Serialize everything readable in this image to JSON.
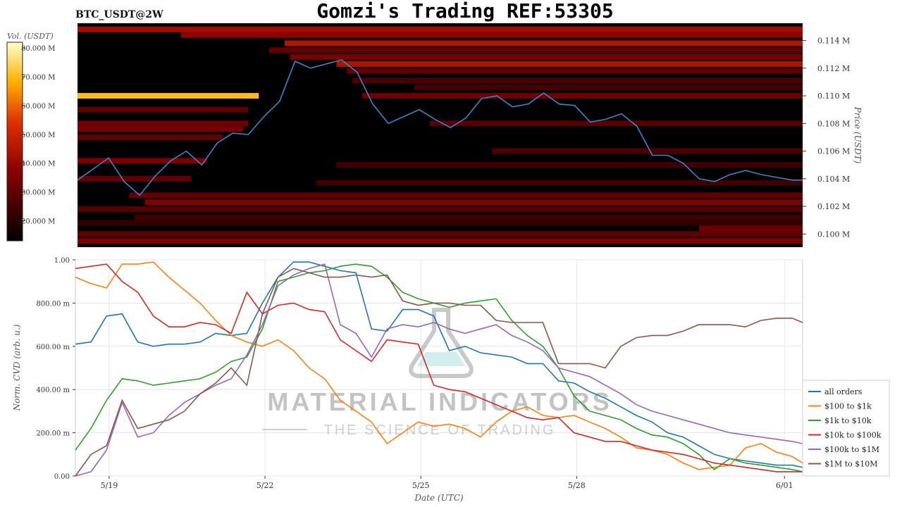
{
  "header": {
    "pair": "BTC_USDT@2W",
    "title": "Gomzi's Trading REF:53305"
  },
  "watermark": {
    "line1": "MATERIAL INDICATORS",
    "line2": "THE SCIENCE OF TRADING"
  },
  "colors": {
    "all orders": "#1f77b4",
    "$100 to $1k": "#ff7f0e",
    "$1k to $10k": "#2ca02c",
    "$10k to $100k": "#d62728",
    "$100k to $1M": "#9467bd",
    "$1M to $10M": "#8c564b",
    "price_line": "#3a86c8",
    "heatmap_bg": "#000000"
  },
  "chart_data": [
    {
      "type": "heatmap",
      "colorbar_label": "Vol. (USDT)",
      "colorbar_ticks": [
        "80.000 M",
        "70.000 M",
        "60.000 M",
        "50.000 M",
        "40.000 M",
        "30.000 M",
        "20.000 M"
      ],
      "colorbar_values": [
        80,
        70,
        60,
        50,
        40,
        30,
        20
      ],
      "colorbar_range": [
        13,
        82
      ],
      "ylabel": "Price (USDT)",
      "y_ticks": [
        "0.114 M",
        "0.112 M",
        "0.110 M",
        "0.108 M",
        "0.106 M",
        "0.104 M",
        "0.102 M",
        "0.100 M"
      ],
      "y_tick_values": [
        114000,
        112000,
        110000,
        108000,
        106000,
        104000,
        102000,
        100000
      ],
      "ylim": [
        99050,
        115250
      ],
      "xlim": [
        0,
        14.0
      ],
      "price_series": {
        "x": [
          0,
          0.3,
          0.6,
          0.9,
          1.2,
          1.5,
          1.8,
          2.1,
          2.4,
          2.7,
          3.0,
          3.3,
          3.6,
          3.9,
          4.2,
          4.5,
          4.8,
          5.1,
          5.4,
          5.7,
          6.0,
          6.3,
          6.6,
          6.9,
          7.2,
          7.5,
          7.8,
          8.1,
          8.4,
          8.7,
          9.0,
          9.3,
          9.6,
          9.9,
          10.2,
          10.5,
          10.8,
          11.1,
          11.4,
          11.7,
          12.0,
          12.3,
          12.6,
          12.9,
          13.2,
          13.5,
          13.8,
          14.0
        ],
        "y": [
          103900,
          104700,
          105500,
          103800,
          102800,
          104200,
          105300,
          106000,
          105000,
          106600,
          107300,
          107200,
          108500,
          109600,
          112500,
          112000,
          112300,
          112600,
          111700,
          109400,
          108000,
          108500,
          109000,
          108300,
          107700,
          108400,
          109800,
          110000,
          109200,
          109400,
          110200,
          109400,
          109300,
          108100,
          108300,
          108700,
          107800,
          105700,
          105700,
          105100,
          104000,
          103800,
          104300,
          104600,
          104300,
          104100,
          103900,
          103900
        ]
      },
      "walls": [
        {
          "price": 110000,
          "x0": 0,
          "x1": 3.5,
          "level": 70
        },
        {
          "price": 114800,
          "x0": 0,
          "x1": 14.0,
          "level": 42
        },
        {
          "price": 114400,
          "x0": 2.0,
          "x1": 14.0,
          "level": 38
        },
        {
          "price": 113800,
          "x0": 4.0,
          "x1": 14.0,
          "level": 45
        },
        {
          "price": 113300,
          "x0": 3.7,
          "x1": 14.0,
          "level": 30
        },
        {
          "price": 112800,
          "x0": 4.1,
          "x1": 14.0,
          "level": 34
        },
        {
          "price": 112300,
          "x0": 5.0,
          "x1": 14.0,
          "level": 44
        },
        {
          "price": 111800,
          "x0": 5.2,
          "x1": 14.0,
          "level": 30
        },
        {
          "price": 111100,
          "x0": 5.3,
          "x1": 14.0,
          "level": 26
        },
        {
          "price": 110600,
          "x0": 6.5,
          "x1": 14.0,
          "level": 25
        },
        {
          "price": 110000,
          "x0": 5.5,
          "x1": 14.0,
          "level": 32
        },
        {
          "price": 109000,
          "x0": 0,
          "x1": 3.3,
          "level": 30
        },
        {
          "price": 108000,
          "x0": 0,
          "x1": 3.3,
          "level": 32
        },
        {
          "price": 108000,
          "x0": 6.8,
          "x1": 14.0,
          "level": 28
        },
        {
          "price": 107600,
          "x0": 0,
          "x1": 3.2,
          "level": 34
        },
        {
          "price": 107000,
          "x0": 0,
          "x1": 2.8,
          "level": 30
        },
        {
          "price": 106000,
          "x0": 8.0,
          "x1": 14.0,
          "level": 26
        },
        {
          "price": 105300,
          "x0": 0,
          "x1": 2.5,
          "level": 34
        },
        {
          "price": 105000,
          "x0": 5.0,
          "x1": 14.0,
          "level": 24
        },
        {
          "price": 104000,
          "x0": 0,
          "x1": 2.2,
          "level": 30
        },
        {
          "price": 103700,
          "x0": 4.6,
          "x1": 14.0,
          "level": 24
        },
        {
          "price": 102800,
          "x0": 1.0,
          "x1": 14.0,
          "level": 30
        },
        {
          "price": 102300,
          "x0": 1.3,
          "x1": 14.0,
          "level": 36
        },
        {
          "price": 101800,
          "x0": 0,
          "x1": 14.0,
          "level": 28
        },
        {
          "price": 101200,
          "x0": 1.1,
          "x1": 14.0,
          "level": 24
        },
        {
          "price": 100800,
          "x0": 0,
          "x1": 14.0,
          "level": 22
        },
        {
          "price": 100400,
          "x0": 12.0,
          "x1": 14.0,
          "level": 32
        },
        {
          "price": 100000,
          "x0": 0,
          "x1": 14.0,
          "level": 30
        },
        {
          "price": 99500,
          "x0": 0,
          "x1": 14.0,
          "level": 34
        }
      ]
    },
    {
      "type": "line",
      "xlabel": "Date (UTC)",
      "ylabel": "Norm. CVD (arb. u.)",
      "x_ticks": [
        "5/19",
        "5/22",
        "5/25",
        "5/28",
        "6/01"
      ],
      "x_tick_values": [
        0.65,
        3.65,
        6.65,
        9.65,
        13.65
      ],
      "y_ticks": [
        "1.00",
        "800.00 m",
        "600.00 m",
        "400.00 m",
        "200.00 m",
        "0.00"
      ],
      "y_tick_values": [
        1.0,
        0.8,
        0.6,
        0.4,
        0.2,
        0.0
      ],
      "ylim": [
        0,
        1.0
      ],
      "xlim": [
        0,
        14.0
      ],
      "legend_position": "bottom-right",
      "x": [
        0,
        0.3,
        0.6,
        0.9,
        1.2,
        1.5,
        1.8,
        2.1,
        2.4,
        2.7,
        3.0,
        3.3,
        3.6,
        3.9,
        4.2,
        4.5,
        4.8,
        5.1,
        5.4,
        5.7,
        6.0,
        6.3,
        6.6,
        6.9,
        7.2,
        7.5,
        7.8,
        8.1,
        8.4,
        8.7,
        9.0,
        9.3,
        9.6,
        9.9,
        10.2,
        10.5,
        10.8,
        11.1,
        11.4,
        11.7,
        12.0,
        12.3,
        12.6,
        12.9,
        13.2,
        13.5,
        13.8,
        14.0
      ],
      "series": [
        {
          "name": "all orders",
          "values": [
            0.61,
            0.62,
            0.74,
            0.75,
            0.62,
            0.6,
            0.61,
            0.61,
            0.62,
            0.66,
            0.65,
            0.66,
            0.8,
            0.92,
            0.99,
            0.99,
            0.97,
            0.95,
            0.94,
            0.68,
            0.67,
            0.77,
            0.77,
            0.74,
            0.58,
            0.6,
            0.57,
            0.56,
            0.55,
            0.52,
            0.52,
            0.44,
            0.43,
            0.39,
            0.36,
            0.32,
            0.28,
            0.25,
            0.2,
            0.18,
            0.14,
            0.1,
            0.08,
            0.07,
            0.06,
            0.05,
            0.05,
            0.04
          ]
        },
        {
          "name": "$100 to $1k",
          "values": [
            0.92,
            0.89,
            0.87,
            0.98,
            0.98,
            0.99,
            0.92,
            0.86,
            0.8,
            0.72,
            0.65,
            0.62,
            0.6,
            0.63,
            0.58,
            0.5,
            0.45,
            0.35,
            0.3,
            0.25,
            0.15,
            0.2,
            0.25,
            0.23,
            0.24,
            0.22,
            0.18,
            0.25,
            0.3,
            0.32,
            0.28,
            0.27,
            0.28,
            0.25,
            0.22,
            0.18,
            0.13,
            0.12,
            0.1,
            0.06,
            0.03,
            0.04,
            0.05,
            0.13,
            0.15,
            0.11,
            0.09,
            0.06
          ]
        },
        {
          "name": "$1k to $10k",
          "values": [
            0.12,
            0.22,
            0.35,
            0.45,
            0.44,
            0.42,
            0.43,
            0.44,
            0.45,
            0.48,
            0.53,
            0.55,
            0.68,
            0.9,
            0.92,
            0.94,
            0.95,
            0.97,
            0.98,
            0.97,
            0.92,
            0.85,
            0.82,
            0.8,
            0.78,
            0.8,
            0.81,
            0.82,
            0.72,
            0.65,
            0.6,
            0.5,
            0.37,
            0.3,
            0.28,
            0.26,
            0.22,
            0.19,
            0.18,
            0.15,
            0.1,
            0.03,
            0.08,
            0.06,
            0.05,
            0.04,
            0.03,
            0.02
          ]
        },
        {
          "name": "$10k to $100k",
          "values": [
            0.96,
            0.97,
            0.98,
            0.9,
            0.85,
            0.74,
            0.69,
            0.69,
            0.71,
            0.7,
            0.66,
            0.85,
            0.75,
            0.79,
            0.8,
            0.77,
            0.76,
            0.63,
            0.58,
            0.53,
            0.63,
            0.62,
            0.61,
            0.42,
            0.4,
            0.39,
            0.36,
            0.33,
            0.3,
            0.27,
            0.26,
            0.27,
            0.2,
            0.18,
            0.16,
            0.16,
            0.14,
            0.12,
            0.11,
            0.1,
            0.08,
            0.06,
            0.05,
            0.04,
            0.03,
            0.02,
            0.02,
            0.02
          ]
        },
        {
          "name": "$100k to $1M",
          "values": [
            0.0,
            0.02,
            0.12,
            0.34,
            0.18,
            0.2,
            0.28,
            0.34,
            0.38,
            0.42,
            0.45,
            0.56,
            0.7,
            0.88,
            0.93,
            0.96,
            0.98,
            0.7,
            0.66,
            0.55,
            0.68,
            0.7,
            0.69,
            0.71,
            0.68,
            0.66,
            0.68,
            0.7,
            0.65,
            0.62,
            0.58,
            0.5,
            0.48,
            0.46,
            0.42,
            0.38,
            0.33,
            0.3,
            0.28,
            0.26,
            0.24,
            0.22,
            0.2,
            0.19,
            0.18,
            0.17,
            0.16,
            0.15
          ]
        },
        {
          "name": "$1M to $10M",
          "values": [
            0.0,
            0.1,
            0.14,
            0.35,
            0.22,
            0.24,
            0.26,
            0.3,
            0.38,
            0.43,
            0.5,
            0.42,
            0.75,
            0.92,
            0.96,
            0.94,
            0.92,
            0.92,
            0.93,
            0.92,
            0.93,
            0.81,
            0.79,
            0.8,
            0.8,
            0.79,
            0.79,
            0.72,
            0.71,
            0.71,
            0.71,
            0.52,
            0.52,
            0.52,
            0.5,
            0.6,
            0.64,
            0.65,
            0.65,
            0.67,
            0.7,
            0.7,
            0.7,
            0.69,
            0.72,
            0.73,
            0.73,
            0.71
          ]
        }
      ]
    }
  ]
}
